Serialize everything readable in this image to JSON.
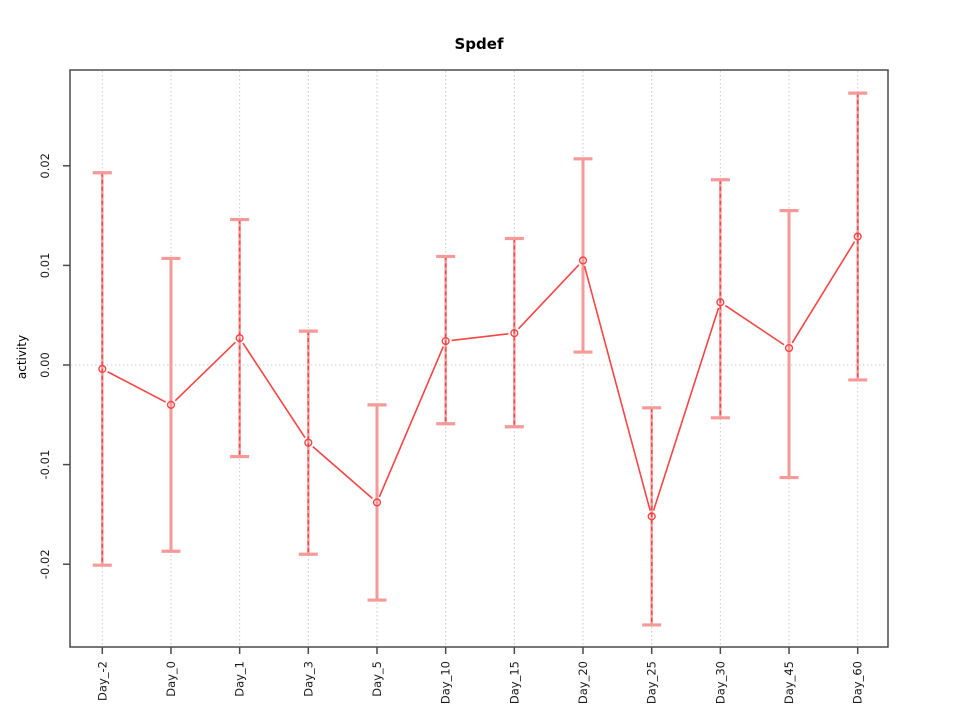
{
  "figure": {
    "title": "Spdef"
  },
  "chart_data": {
    "type": "line",
    "title": "Spdef",
    "xlabel": "",
    "ylabel": "activity",
    "legend": "none",
    "grid": {
      "vertical_dotted_at_each_category": true,
      "horizontal_dotted_at_zero": true
    },
    "categories": [
      "Day_-2",
      "Day_0",
      "Day_1",
      "Day_3",
      "Day_5",
      "Day_10",
      "Day_15",
      "Day_20",
      "Day_25",
      "Day_30",
      "Day_45",
      "Day_60"
    ],
    "series": [
      {
        "name": "activity",
        "marker": "open-circle",
        "values": [
          -0.0004,
          -0.004,
          0.0027,
          -0.0078,
          -0.0138,
          0.0024,
          0.0032,
          0.0105,
          -0.0152,
          0.0063,
          0.0017,
          0.0129
        ],
        "error_low": [
          -0.0201,
          -0.0187,
          -0.0092,
          -0.019,
          -0.0236,
          -0.0059,
          -0.0062,
          0.0013,
          -0.0261,
          -0.0053,
          -0.0113,
          -0.0015
        ],
        "error_high": [
          0.0193,
          0.0107,
          0.0146,
          0.0034,
          -0.004,
          0.0109,
          0.0127,
          0.0207,
          -0.0043,
          0.0186,
          0.0155,
          0.0273
        ],
        "stem_style": [
          "dashed",
          "solid",
          "dashed",
          "dashed",
          "solid",
          "dashed",
          "dashed",
          "solid",
          "dashed",
          "dashed",
          "solid",
          "dashed"
        ]
      }
    ],
    "yticks": [
      0.02,
      0.01,
      0,
      -0.01,
      -0.02
    ],
    "ytick_labels": [
      "0.02",
      "0.01",
      "0.00",
      "-0.01",
      "-0.02"
    ],
    "ylim": [
      -0.0283,
      0.0296
    ],
    "colors": {
      "line": "#f54545",
      "point": "#f54545",
      "error_stem_solid": "#f59999",
      "error_cap": "#f59999",
      "error_stem_dash": "#f54545",
      "grid": "#c9c9c9",
      "axis_box": "#4a4a4a",
      "tick_text": "#1a1a1a",
      "background": "#ffffff"
    }
  }
}
